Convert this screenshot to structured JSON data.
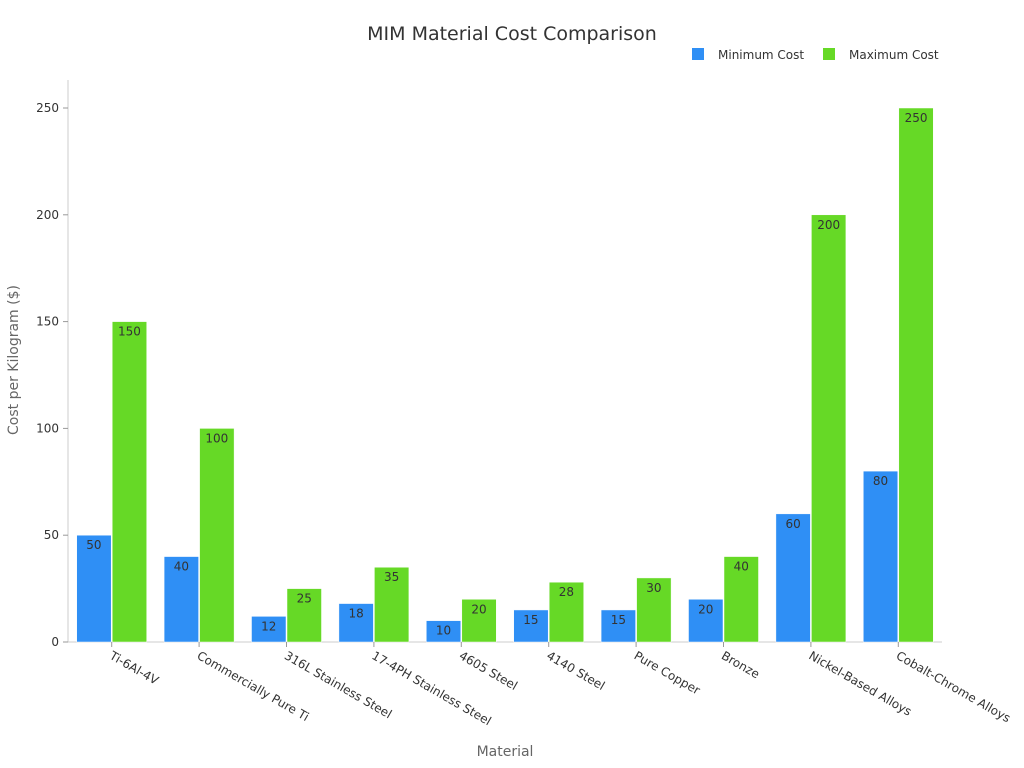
{
  "chart_data": {
    "type": "bar",
    "title": "MIM Material Cost Comparison",
    "xlabel": "Material",
    "ylabel": "Cost per Kilogram ($)",
    "categories": [
      "Ti-6Al-4V",
      "Commercially Pure Ti",
      "316L Stainless Steel",
      "17-4PH Stainless Steel",
      "4605 Steel",
      "4140 Steel",
      "Pure Copper",
      "Bronze",
      "Nickel-Based Alloys",
      "Cobalt-Chrome Alloys"
    ],
    "series": [
      {
        "name": "Minimum Cost",
        "color": "#2f8ff5",
        "values": [
          50,
          40,
          12,
          18,
          10,
          15,
          15,
          20,
          60,
          80
        ]
      },
      {
        "name": "Maximum Cost",
        "color": "#66d926",
        "values": [
          150,
          100,
          25,
          35,
          20,
          28,
          30,
          40,
          200,
          250
        ]
      }
    ],
    "ylim": [
      0,
      250
    ],
    "yticks": [
      0,
      50,
      100,
      150,
      200,
      250
    ],
    "grid": false,
    "legend": "top-right",
    "data_labels": true
  }
}
